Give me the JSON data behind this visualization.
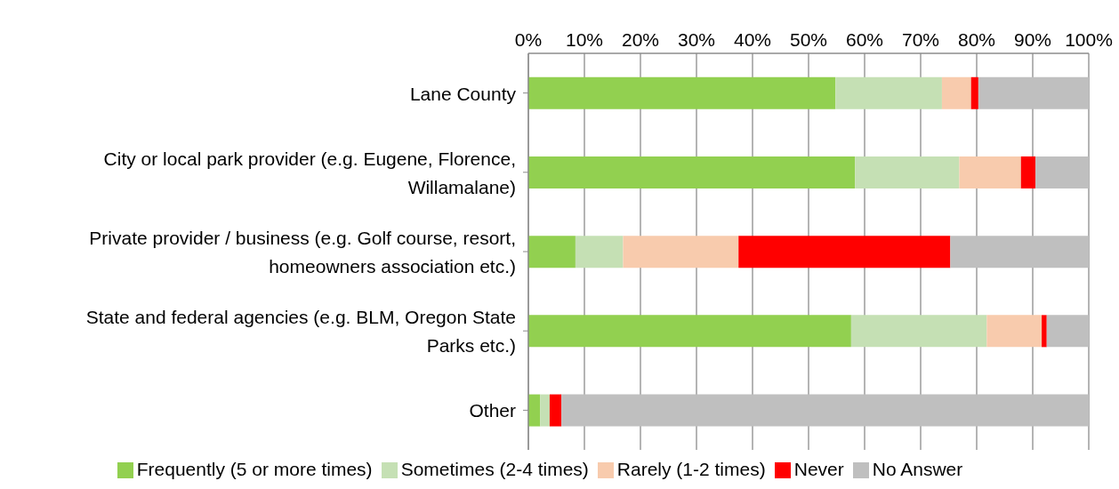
{
  "chart_data": {
    "type": "bar",
    "orientation": "horizontal",
    "stacked": true,
    "categories": [
      "Lane County",
      "City or local park provider (e.g. Eugene, Florence, Willamalane)",
      "Private provider / business (e.g. Golf course, resort, homeowners association etc.)",
      "State and federal agencies (e.g. BLM, Oregon State Parks etc.)",
      "Other"
    ],
    "series": [
      {
        "name": "Frequently (5 or more times)",
        "color": "#92d050",
        "values": [
          54.8,
          58.3,
          8.4,
          57.6,
          2.1
        ]
      },
      {
        "name": "Sometimes (2-4 times)",
        "color": "#c5e0b4",
        "values": [
          19.0,
          18.6,
          8.5,
          24.2,
          1.7
        ]
      },
      {
        "name": "Rarely (1-2 times)",
        "color": "#f8cbad",
        "values": [
          5.2,
          11.0,
          20.6,
          9.8,
          0
        ]
      },
      {
        "name": "Never",
        "color": "#ff0000",
        "values": [
          1.3,
          2.6,
          37.8,
          0.9,
          2.1
        ]
      },
      {
        "name": "No Answer",
        "color": "#bfbfbf",
        "values": [
          19.7,
          9.5,
          24.7,
          7.5,
          94.1
        ]
      }
    ],
    "xlim": [
      0,
      100
    ],
    "xticks": [
      {
        "value": 0,
        "label": "0%"
      },
      {
        "value": 10,
        "label": "10%"
      },
      {
        "value": 20,
        "label": "20%"
      },
      {
        "value": 30,
        "label": "30%"
      },
      {
        "value": 40,
        "label": "40%"
      },
      {
        "value": 50,
        "label": "50%"
      },
      {
        "value": 60,
        "label": "60%"
      },
      {
        "value": 70,
        "label": "70%"
      },
      {
        "value": 80,
        "label": "80%"
      },
      {
        "value": 90,
        "label": "90%"
      },
      {
        "value": 100,
        "label": "100%"
      }
    ],
    "grid": "x",
    "legend": "bottom"
  }
}
